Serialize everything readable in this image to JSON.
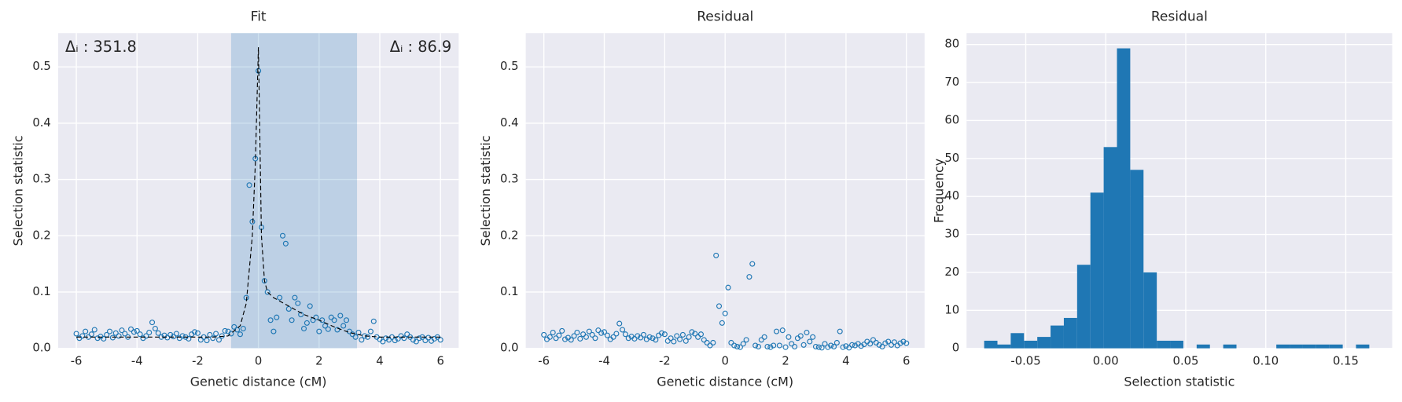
{
  "chart_data": [
    {
      "type": "scatter",
      "title": "Fit",
      "xlabel": "Genetic distance (cM)",
      "ylabel": "Selection statistic",
      "xlim": [
        -6.6,
        6.6
      ],
      "ylim": [
        0,
        0.56
      ],
      "xticks": [
        -6,
        -4,
        -2,
        0,
        2,
        4,
        6
      ],
      "yticks": [
        {
          "value": 0,
          "label": "0.0"
        },
        0.1,
        0.2,
        0.3,
        0.4,
        0.5
      ],
      "grid": true,
      "span": [
        -0.9,
        3.25
      ],
      "span_color": "#1f77b4",
      "annotations": [
        "Δᵢ : 351.8",
        "Δᵢ : 86.9"
      ],
      "series": [
        {
          "kind": "points",
          "color": "#1f77b4",
          "x": [
            -6.0,
            -5.9,
            -5.8,
            -5.7,
            -5.6,
            -5.5,
            -5.4,
            -5.3,
            -5.2,
            -5.1,
            -5.0,
            -4.9,
            -4.8,
            -4.7,
            -4.6,
            -4.5,
            -4.4,
            -4.3,
            -4.2,
            -4.1,
            -4.0,
            -3.9,
            -3.8,
            -3.7,
            -3.6,
            -3.5,
            -3.4,
            -3.3,
            -3.2,
            -3.1,
            -3.0,
            -2.9,
            -2.8,
            -2.7,
            -2.6,
            -2.5,
            -2.4,
            -2.3,
            -2.2,
            -2.1,
            -2.0,
            -1.9,
            -1.8,
            -1.7,
            -1.6,
            -1.5,
            -1.4,
            -1.3,
            -1.2,
            -1.1,
            -1.0,
            -0.9,
            -0.8,
            -0.7,
            -0.6,
            -0.5,
            -0.4,
            -0.3,
            -0.2,
            -0.1,
            0.0,
            0.1,
            0.2,
            0.3,
            0.4,
            0.5,
            0.6,
            0.7,
            0.8,
            0.9,
            1.0,
            1.1,
            1.2,
            1.3,
            1.4,
            1.5,
            1.6,
            1.7,
            1.8,
            1.9,
            2.0,
            2.1,
            2.2,
            2.3,
            2.4,
            2.5,
            2.6,
            2.7,
            2.8,
            2.9,
            3.0,
            3.1,
            3.2,
            3.3,
            3.4,
            3.5,
            3.6,
            3.7,
            3.8,
            3.9,
            4.0,
            4.1,
            4.2,
            4.3,
            4.4,
            4.5,
            4.6,
            4.7,
            4.8,
            4.9,
            5.0,
            5.1,
            5.2,
            5.3,
            5.4,
            5.5,
            5.6,
            5.7,
            5.8,
            5.9,
            6.0
          ],
          "values": [
            0.026,
            0.018,
            0.022,
            0.03,
            0.02,
            0.025,
            0.033,
            0.018,
            0.021,
            0.017,
            0.024,
            0.03,
            0.019,
            0.027,
            0.022,
            0.032,
            0.026,
            0.02,
            0.034,
            0.029,
            0.031,
            0.025,
            0.018,
            0.022,
            0.028,
            0.046,
            0.035,
            0.027,
            0.02,
            0.023,
            0.019,
            0.024,
            0.021,
            0.026,
            0.018,
            0.022,
            0.02,
            0.017,
            0.025,
            0.029,
            0.027,
            0.015,
            0.02,
            0.014,
            0.024,
            0.018,
            0.026,
            0.015,
            0.022,
            0.031,
            0.03,
            0.026,
            0.038,
            0.033,
            0.025,
            0.035,
            0.09,
            0.29,
            0.225,
            0.337,
            0.493,
            0.215,
            0.12,
            0.1,
            0.05,
            0.03,
            0.055,
            0.09,
            0.2,
            0.186,
            0.07,
            0.05,
            0.09,
            0.08,
            0.06,
            0.035,
            0.045,
            0.075,
            0.05,
            0.055,
            0.03,
            0.05,
            0.04,
            0.034,
            0.055,
            0.05,
            0.033,
            0.058,
            0.04,
            0.05,
            0.03,
            0.025,
            0.02,
            0.028,
            0.015,
            0.022,
            0.02,
            0.03,
            0.048,
            0.02,
            0.016,
            0.012,
            0.018,
            0.015,
            0.02,
            0.014,
            0.017,
            0.022,
            0.018,
            0.025,
            0.02,
            0.015,
            0.012,
            0.018,
            0.02,
            0.014,
            0.019,
            0.013,
            0.017,
            0.02,
            0.015
          ]
        },
        {
          "kind": "line",
          "color": "#000000",
          "dashed": true,
          "x": [
            -6,
            -1.5,
            -1,
            -0.6,
            -0.4,
            -0.2,
            -0.1,
            0,
            0.1,
            0.2,
            0.3,
            0.5,
            1,
            1.5,
            2,
            2.5,
            3,
            3.5,
            4,
            6
          ],
          "values": [
            0.02,
            0.02,
            0.022,
            0.04,
            0.08,
            0.2,
            0.33,
            0.535,
            0.2,
            0.12,
            0.1,
            0.09,
            0.075,
            0.06,
            0.05,
            0.038,
            0.028,
            0.022,
            0.02,
            0.02
          ]
        }
      ]
    },
    {
      "type": "scatter",
      "title": "Residual",
      "xlabel": "Genetic distance (cM)",
      "ylabel": "Selection statistic",
      "xlim": [
        -6.6,
        6.6
      ],
      "ylim": [
        0,
        0.56
      ],
      "xticks": [
        -6,
        -4,
        -2,
        0,
        2,
        4,
        6
      ],
      "yticks": [
        {
          "value": 0,
          "label": "0.0"
        },
        0.1,
        0.2,
        0.3,
        0.4,
        0.5
      ],
      "grid": true,
      "series": [
        {
          "kind": "points",
          "color": "#1f77b4",
          "x": [
            -6.0,
            -5.9,
            -5.8,
            -5.7,
            -5.6,
            -5.5,
            -5.4,
            -5.3,
            -5.2,
            -5.1,
            -5.0,
            -4.9,
            -4.8,
            -4.7,
            -4.6,
            -4.5,
            -4.4,
            -4.3,
            -4.2,
            -4.1,
            -4.0,
            -3.9,
            -3.8,
            -3.7,
            -3.6,
            -3.5,
            -3.4,
            -3.3,
            -3.2,
            -3.1,
            -3.0,
            -2.9,
            -2.8,
            -2.7,
            -2.6,
            -2.5,
            -2.4,
            -2.3,
            -2.2,
            -2.1,
            -2.0,
            -1.9,
            -1.8,
            -1.7,
            -1.6,
            -1.5,
            -1.4,
            -1.3,
            -1.2,
            -1.1,
            -1.0,
            -0.9,
            -0.8,
            -0.7,
            -0.6,
            -0.5,
            -0.4,
            -0.3,
            -0.2,
            -0.1,
            0.0,
            0.1,
            0.2,
            0.3,
            0.4,
            0.5,
            0.6,
            0.7,
            0.8,
            0.9,
            1.0,
            1.1,
            1.2,
            1.3,
            1.4,
            1.5,
            1.6,
            1.7,
            1.8,
            1.9,
            2.0,
            2.1,
            2.2,
            2.3,
            2.4,
            2.5,
            2.6,
            2.7,
            2.8,
            2.9,
            3.0,
            3.1,
            3.2,
            3.3,
            3.4,
            3.5,
            3.6,
            3.7,
            3.8,
            3.9,
            4.0,
            4.1,
            4.2,
            4.3,
            4.4,
            4.5,
            4.6,
            4.7,
            4.8,
            4.9,
            5.0,
            5.1,
            5.2,
            5.3,
            5.4,
            5.5,
            5.6,
            5.7,
            5.8,
            5.9,
            6.0
          ],
          "values": [
            0.024,
            0.016,
            0.02,
            0.028,
            0.018,
            0.023,
            0.031,
            0.016,
            0.019,
            0.015,
            0.022,
            0.028,
            0.017,
            0.025,
            0.02,
            0.03,
            0.024,
            0.018,
            0.032,
            0.027,
            0.029,
            0.023,
            0.016,
            0.02,
            0.026,
            0.044,
            0.033,
            0.025,
            0.018,
            0.021,
            0.017,
            0.022,
            0.019,
            0.024,
            0.016,
            0.02,
            0.018,
            0.015,
            0.023,
            0.027,
            0.025,
            0.013,
            0.018,
            0.012,
            0.022,
            0.016,
            0.024,
            0.013,
            0.02,
            0.029,
            0.026,
            0.02,
            0.025,
            0.015,
            0.01,
            0.005,
            0.01,
            0.165,
            0.075,
            0.045,
            0.062,
            0.108,
            0.01,
            0.005,
            0.003,
            0.002,
            0.008,
            0.015,
            0.127,
            0.15,
            0.005,
            0.003,
            0.015,
            0.02,
            0.003,
            0.002,
            0.005,
            0.03,
            0.005,
            0.032,
            0.002,
            0.02,
            0.008,
            0.003,
            0.018,
            0.022,
            0.006,
            0.028,
            0.012,
            0.02,
            0.003,
            0.002,
            0.001,
            0.008,
            0.002,
            0.005,
            0.003,
            0.01,
            0.03,
            0.002,
            0.004,
            0.001,
            0.006,
            0.005,
            0.008,
            0.004,
            0.007,
            0.012,
            0.008,
            0.015,
            0.01,
            0.006,
            0.003,
            0.009,
            0.012,
            0.006,
            0.011,
            0.005,
            0.009,
            0.012,
            0.009
          ]
        }
      ]
    },
    {
      "type": "histogram",
      "title": "Residual",
      "xlabel": "Selection statistic",
      "ylabel": "Frequency",
      "color": "#1f77b4",
      "xlim": [
        -0.087,
        0.179
      ],
      "ylim": [
        0,
        83
      ],
      "xticks": [
        -0.05,
        {
          "value": 0,
          "label": "0.00"
        },
        0.05,
        {
          "value": 0.1,
          "label": "0.10"
        },
        0.15
      ],
      "yticks": [
        0,
        10,
        20,
        30,
        40,
        50,
        60,
        70,
        80
      ],
      "grid": true,
      "bins": [
        -0.076,
        -0.0677,
        -0.0594,
        -0.0511,
        -0.0428,
        -0.0345,
        -0.0262,
        -0.0179,
        -0.0096,
        -0.0013,
        0.007,
        0.0153,
        0.0236,
        0.0319,
        0.0402,
        0.0485,
        0.0568,
        0.0651,
        0.0734,
        0.0817,
        0.09,
        0.0983,
        0.1066,
        0.1149,
        0.1232,
        0.1315,
        0.1398,
        0.1481,
        0.1564,
        0.1647
      ],
      "values": [
        2,
        1,
        4,
        2,
        3,
        6,
        8,
        22,
        41,
        53,
        79,
        47,
        20,
        2,
        2,
        0,
        1,
        0,
        1,
        0,
        0,
        0,
        1,
        1,
        1,
        1,
        1,
        0,
        1
      ]
    }
  ]
}
